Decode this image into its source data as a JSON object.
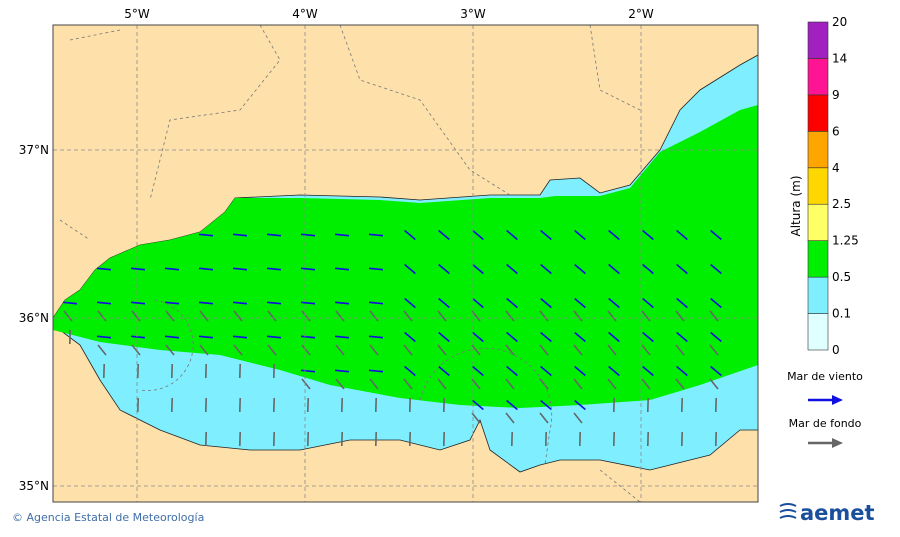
{
  "map": {
    "lon_labels": [
      "5°W",
      "4°W",
      "3°W",
      "2°W"
    ],
    "lat_labels": [
      "37°N",
      "36°N",
      "35°N"
    ],
    "colorbar": {
      "title": "Altura (m)",
      "levels": [
        0,
        0.1,
        0.5,
        1.25,
        2.5,
        4,
        6,
        9,
        14,
        20
      ],
      "colors": [
        "#e0ffff",
        "#7fefff",
        "#00ee00",
        "#ffff66",
        "#ffd700",
        "#ffa500",
        "#ff0000",
        "#ff1493",
        "#a020c0"
      ]
    },
    "legend": [
      {
        "label": "Mar de viento",
        "color": "#1010e0"
      },
      {
        "label": "Mar de fondo",
        "color": "#666666"
      }
    ],
    "footer": "© Agencia Estatal de Meteorología",
    "logo": "aemet"
  }
}
